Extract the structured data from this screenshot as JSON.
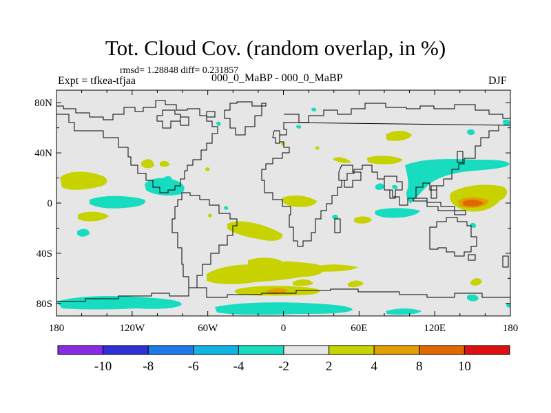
{
  "figure": {
    "title": "Tot. Cloud Cov. (random overlap, in %)",
    "stats": "rmsd= 1.28848 diff= 0.231857",
    "left_label": "Expt = tfkea-tfjaa",
    "center_label": "000_0_MaBP - 000_0_MaBP",
    "right_label": "DJF"
  },
  "axes": {
    "x_ticks": [
      "180",
      "120W",
      "60W",
      "0",
      "60E",
      "120E",
      "180"
    ],
    "y_ticks": [
      "80N",
      "40N",
      "0",
      "40S",
      "80S"
    ]
  },
  "colorbar": {
    "colors": [
      "#8a2be2",
      "#3030d8",
      "#1e78e6",
      "#12b4e0",
      "#18dcc0",
      "#e6e6e6",
      "#c8d200",
      "#e0a000",
      "#e06800",
      "#e01010"
    ],
    "labels": [
      "-10",
      "-8",
      "-6",
      "-4",
      "-2",
      "2",
      "4",
      "8",
      "10"
    ]
  },
  "colors": {
    "background": "#e6e6e6",
    "coast": "#000000",
    "negative_fill": "#18dcc0",
    "positive_fill": "#c8d200",
    "strong_positive_fill": "#e0a000",
    "peak_fill": "#e06800"
  }
}
